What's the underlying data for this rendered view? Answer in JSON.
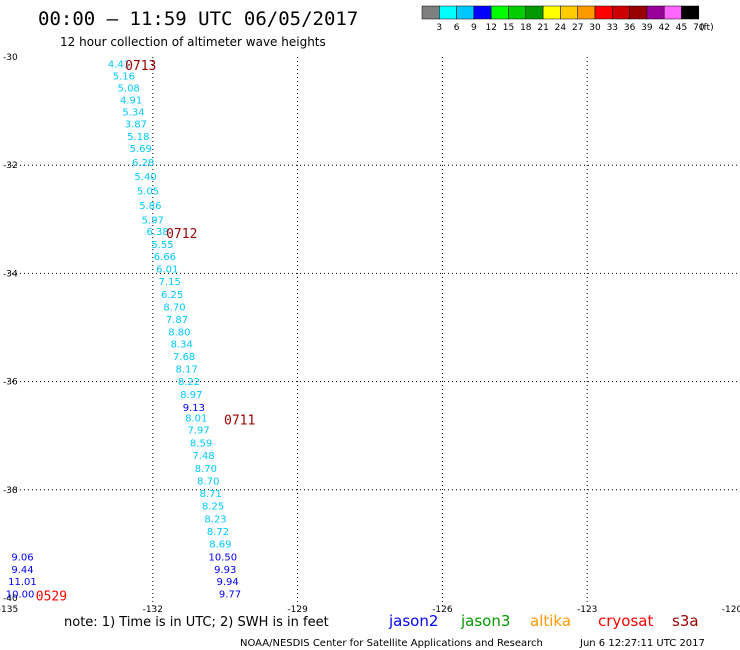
{
  "header": {
    "title": "00:00 — 11:59 UTC 06/05/2017",
    "subtitle": "12 hour collection of altimeter wave heights"
  },
  "legend_scale": {
    "labels": [
      "3",
      "6",
      "9",
      "12",
      "15",
      "18",
      "21",
      "24",
      "27",
      "30",
      "33",
      "36",
      "39",
      "42",
      "45",
      "70",
      "(ft)"
    ],
    "colors": [
      "#7f7f7f",
      "#00ffff",
      "#00c8ff",
      "#0000ff",
      "#00ff00",
      "#00cc00",
      "#009900",
      "#ffff00",
      "#ffcc00",
      "#ff9900",
      "#ff0000",
      "#cc0000",
      "#990000",
      "#990099",
      "#ff66ff",
      "#000000"
    ]
  },
  "chart_data": {
    "type": "scatter",
    "xlim": [
      -135,
      -120
    ],
    "ylim": [
      -40,
      -30
    ],
    "xticks": [
      -135,
      -132,
      -129,
      -126,
      -123,
      -120
    ],
    "yticks": [
      -30,
      -32,
      -34,
      -36,
      -38,
      -40
    ],
    "grid": true,
    "points": [
      {
        "x": -132.7,
        "y": -30.12,
        "label": "4.41",
        "color": "#00c8ff"
      },
      {
        "x": -132.6,
        "y": -30.34,
        "label": "5.16",
        "color": "#00c8ff"
      },
      {
        "x": -132.5,
        "y": -30.56,
        "label": "5.08",
        "color": "#00c8ff"
      },
      {
        "x": -132.45,
        "y": -30.79,
        "label": "4.91",
        "color": "#00c8ff"
      },
      {
        "x": -132.4,
        "y": -31.01,
        "label": "5.34",
        "color": "#00c8ff"
      },
      {
        "x": -132.35,
        "y": -31.23,
        "label": "3.87",
        "color": "#00c8ff"
      },
      {
        "x": -132.3,
        "y": -31.46,
        "label": "5.18",
        "color": "#00c8ff"
      },
      {
        "x": -132.25,
        "y": -31.68,
        "label": "5.69",
        "color": "#00c8ff"
      },
      {
        "x": -132.2,
        "y": -31.94,
        "label": "6.28",
        "color": "#00c8ff"
      },
      {
        "x": -132.15,
        "y": -32.2,
        "label": "5.40",
        "color": "#00c8ff"
      },
      {
        "x": -132.1,
        "y": -32.47,
        "label": "5.05",
        "color": "#00c8ff"
      },
      {
        "x": -132.05,
        "y": -32.74,
        "label": "5.86",
        "color": "#00c8ff"
      },
      {
        "x": -132.0,
        "y": -33.0,
        "label": "5.97",
        "color": "#00c8ff"
      },
      {
        "x": -131.9,
        "y": -33.22,
        "label": "6.38",
        "color": "#00c8ff"
      },
      {
        "x": -131.8,
        "y": -33.46,
        "label": "5.55",
        "color": "#00c8ff"
      },
      {
        "x": -131.75,
        "y": -33.68,
        "label": "6.66",
        "color": "#00c8ff"
      },
      {
        "x": -131.7,
        "y": -33.91,
        "label": "6.01",
        "color": "#00c8ff"
      },
      {
        "x": -131.65,
        "y": -34.14,
        "label": "7.15",
        "color": "#00c8ff"
      },
      {
        "x": -131.6,
        "y": -34.38,
        "label": "6.25",
        "color": "#00c8ff"
      },
      {
        "x": -131.55,
        "y": -34.61,
        "label": "8.70",
        "color": "#00c8ff"
      },
      {
        "x": -131.5,
        "y": -34.84,
        "label": "7.87",
        "color": "#00c8ff"
      },
      {
        "x": -131.45,
        "y": -35.07,
        "label": "8.80",
        "color": "#00c8ff"
      },
      {
        "x": -131.4,
        "y": -35.3,
        "label": "8.34",
        "color": "#00c8ff"
      },
      {
        "x": -131.35,
        "y": -35.53,
        "label": "7.68",
        "color": "#00c8ff"
      },
      {
        "x": -131.3,
        "y": -35.76,
        "label": "8.17",
        "color": "#00c8ff"
      },
      {
        "x": -131.25,
        "y": -35.99,
        "label": "8.22",
        "color": "#00c8ff"
      },
      {
        "x": -131.2,
        "y": -36.23,
        "label": "8.97",
        "color": "#00c8ff"
      },
      {
        "x": -131.15,
        "y": -36.47,
        "label": "9.13",
        "color": "#0000ff"
      },
      {
        "x": -131.1,
        "y": -36.66,
        "label": "8.01",
        "color": "#00c8ff"
      },
      {
        "x": -131.05,
        "y": -36.89,
        "label": "7.97",
        "color": "#00c8ff"
      },
      {
        "x": -131.0,
        "y": -37.13,
        "label": "8.59",
        "color": "#00c8ff"
      },
      {
        "x": -130.95,
        "y": -37.36,
        "label": "7.48",
        "color": "#00c8ff"
      },
      {
        "x": -130.9,
        "y": -37.6,
        "label": "8.70",
        "color": "#00c8ff"
      },
      {
        "x": -130.85,
        "y": -37.83,
        "label": "8.70",
        "color": "#00c8ff"
      },
      {
        "x": -130.8,
        "y": -38.06,
        "label": "8.71",
        "color": "#00c8ff"
      },
      {
        "x": -130.75,
        "y": -38.29,
        "label": "8.25",
        "color": "#00c8ff"
      },
      {
        "x": -130.7,
        "y": -38.53,
        "label": "8.23",
        "color": "#00c8ff"
      },
      {
        "x": -130.65,
        "y": -38.76,
        "label": "8.72",
        "color": "#00c8ff"
      },
      {
        "x": -130.6,
        "y": -38.99,
        "label": "8.69",
        "color": "#00c8ff"
      },
      {
        "x": -130.55,
        "y": -39.23,
        "label": "10.50",
        "color": "#0000ff"
      },
      {
        "x": -130.5,
        "y": -39.46,
        "label": "9.93",
        "color": "#0000ff"
      },
      {
        "x": -130.45,
        "y": -39.69,
        "label": "9.94",
        "color": "#0000ff"
      },
      {
        "x": -130.4,
        "y": -39.92,
        "label": "9.77",
        "color": "#0000ff"
      },
      {
        "x": -134.7,
        "y": -39.23,
        "label": "9.06",
        "color": "#0000ff"
      },
      {
        "x": -134.7,
        "y": -39.46,
        "label": "9.44",
        "color": "#0000ff"
      },
      {
        "x": -134.7,
        "y": -39.69,
        "label": "11.01",
        "color": "#0000ff"
      },
      {
        "x": -134.75,
        "y": -39.92,
        "label": "10.00",
        "color": "#0000ff"
      }
    ],
    "time_labels": [
      {
        "x": -132.25,
        "y": -30.15,
        "label": "0713",
        "color": "#990000"
      },
      {
        "x": -131.4,
        "y": -33.25,
        "label": "0712",
        "color": "#990000"
      },
      {
        "x": -130.2,
        "y": -36.7,
        "label": "0711",
        "color": "#990000"
      },
      {
        "x": -134.1,
        "y": -39.95,
        "label": "0529",
        "color": "#ff0000"
      }
    ]
  },
  "footer": {
    "note": "note: 1) Time is in UTC; 2) SWH is in feet",
    "satellites": [
      {
        "name": "jason2",
        "color": "#0000ff"
      },
      {
        "name": "jason3",
        "color": "#009900"
      },
      {
        "name": "altika",
        "color": "#ff9900"
      },
      {
        "name": "cryosat",
        "color": "#ff0000"
      },
      {
        "name": "s3a",
        "color": "#990000"
      }
    ],
    "credit": "NOAA/NESDIS Center for Satellite Applications and Research",
    "timestamp": "Jun  6 12:27:11 UTC 2017"
  }
}
